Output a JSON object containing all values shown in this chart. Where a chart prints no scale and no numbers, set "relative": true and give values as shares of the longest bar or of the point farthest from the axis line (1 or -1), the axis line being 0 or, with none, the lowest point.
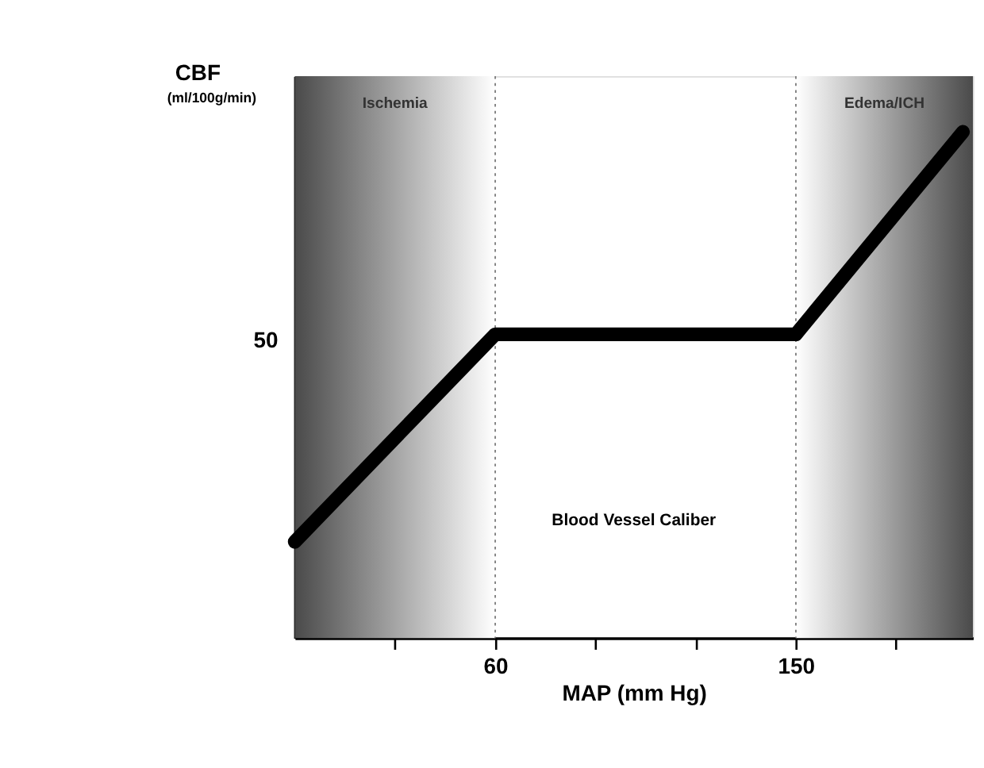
{
  "chart_data": {
    "type": "line",
    "relative": true,
    "xlabel": "MAP (mm Hg)",
    "ylabel": "CBF\n(ml/100g/min)",
    "x": [
      0,
      60,
      150,
      200
    ],
    "series": [
      {
        "color": "#000000",
        "values": [
          0.19,
          0.6,
          0.6,
          1.0
        ]
      }
    ],
    "xlim": [
      0,
      203
    ],
    "xticks": [
      {
        "value": 30,
        "label": null
      },
      60,
      {
        "value": 90,
        "label": null
      },
      {
        "value": 120,
        "label": null
      },
      150,
      {
        "value": 180,
        "label": null
      }
    ],
    "bands": [
      {
        "axis": "x",
        "from": 0,
        "to": 60,
        "label": "Ischemia",
        "color": "#4a4a4a"
      },
      {
        "axis": "x",
        "from": 150,
        "to": 203,
        "label": "Edema/ICH",
        "color": "#4a4a4a"
      }
    ],
    "ref_lines": [
      {
        "axis": "x",
        "value": 60,
        "line_style": "dotted",
        "color": "#777777"
      },
      {
        "axis": "x",
        "value": 150,
        "line_style": "dotted",
        "color": "#777777"
      }
    ],
    "annotations": [
      "50",
      "Blood Vessel Caliber"
    ],
    "grid": false,
    "legend": false,
    "line_style": "solid"
  }
}
